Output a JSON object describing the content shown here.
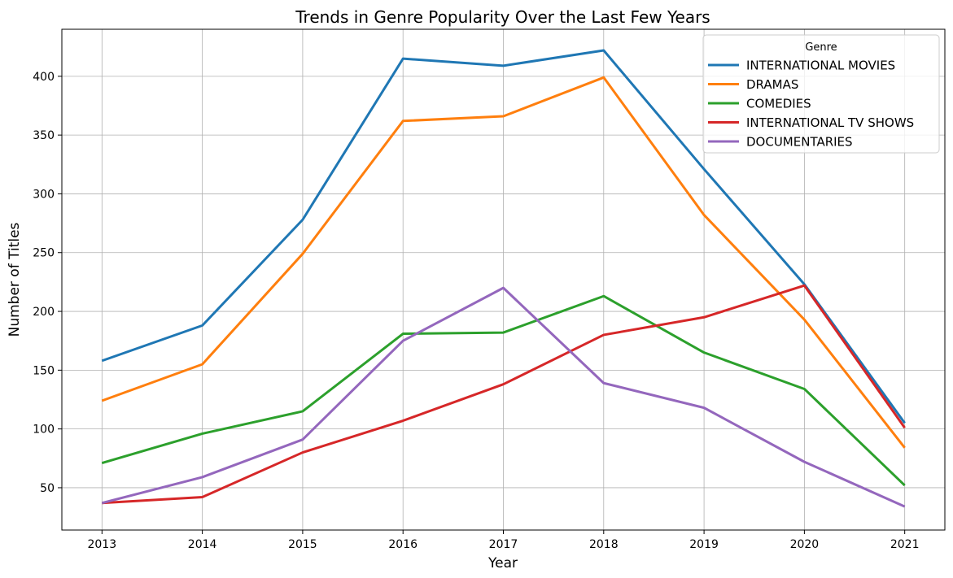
{
  "chart_data": {
    "type": "line",
    "title": "Trends in Genre Popularity Over the Last Few Years",
    "xlabel": "Year",
    "ylabel": "Number of Titles",
    "x": [
      2013,
      2014,
      2015,
      2016,
      2017,
      2018,
      2019,
      2020,
      2021
    ],
    "x_tick_labels": [
      "2013",
      "2014",
      "2015",
      "2016",
      "2017",
      "2018",
      "2019",
      "2020",
      "2021"
    ],
    "xlim": [
      2012.6,
      2021.4
    ],
    "ylim": [
      14,
      440
    ],
    "y_ticks": [
      50,
      100,
      150,
      200,
      250,
      300,
      350,
      400
    ],
    "y_tick_labels": [
      "50",
      "100",
      "150",
      "200",
      "250",
      "300",
      "350",
      "400"
    ],
    "grid": true,
    "legend": {
      "title": "Genre",
      "placement": "top-right"
    },
    "series": [
      {
        "name": "INTERNATIONAL MOVIES",
        "color": "#1f77b4",
        "values": [
          158,
          188,
          278,
          415,
          409,
          422,
          321,
          223,
          105
        ]
      },
      {
        "name": "DRAMAS",
        "color": "#ff7f0e",
        "values": [
          124,
          155,
          249,
          362,
          366,
          399,
          282,
          193,
          84
        ]
      },
      {
        "name": "COMEDIES",
        "color": "#2ca02c",
        "values": [
          71,
          96,
          115,
          181,
          182,
          213,
          165,
          134,
          52
        ]
      },
      {
        "name": "INTERNATIONAL TV SHOWS",
        "color": "#d62728",
        "values": [
          37,
          42,
          80,
          107,
          138,
          180,
          195,
          222,
          101
        ]
      },
      {
        "name": "DOCUMENTARIES",
        "color": "#9467bd",
        "values": [
          37,
          59,
          91,
          175,
          220,
          139,
          118,
          72,
          34
        ]
      }
    ]
  }
}
